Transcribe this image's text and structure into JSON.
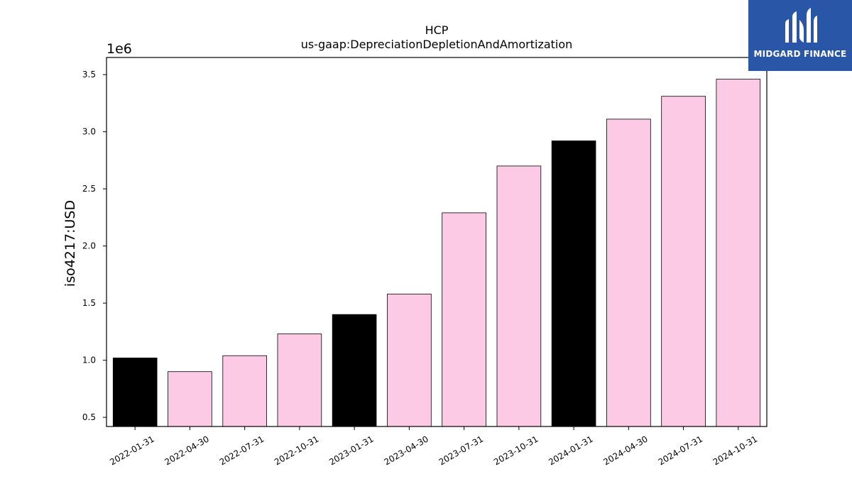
{
  "chart_data": {
    "type": "bar",
    "title": "HCP",
    "subtitle": "us-gaap:DepreciationDepletionAndAmortization",
    "ylabel": "iso4217:USD",
    "xlabel": "",
    "scale_label": "1e6",
    "ylim": [
      0.42,
      3.65
    ],
    "yticks": [
      0.5,
      1.0,
      1.5,
      2.0,
      2.5,
      3.0,
      3.5
    ],
    "ytick_labels": [
      "0.5",
      "1.0",
      "1.5",
      "2.0",
      "2.5",
      "3.0",
      "3.5"
    ],
    "grid": false,
    "categories": [
      "2022-01-31",
      "2022-04-30",
      "2022-07-31",
      "2022-10-31",
      "2023-01-31",
      "2023-04-30",
      "2023-07-31",
      "2023-10-31",
      "2024-01-31",
      "2024-04-30",
      "2024-07-31",
      "2024-10-31"
    ],
    "values": [
      1.02,
      0.9,
      1.04,
      1.23,
      1.4,
      1.58,
      2.29,
      2.7,
      2.92,
      3.11,
      3.31,
      3.46
    ],
    "bar_colors": [
      "#000000",
      "#fccae4",
      "#fccae4",
      "#fccae4",
      "#000000",
      "#fccae4",
      "#fccae4",
      "#fccae4",
      "#000000",
      "#fccae4",
      "#fccae4",
      "#fccae4"
    ]
  },
  "logo": {
    "text": "MIDGARD FINANCE",
    "background": "#2a56a8"
  }
}
